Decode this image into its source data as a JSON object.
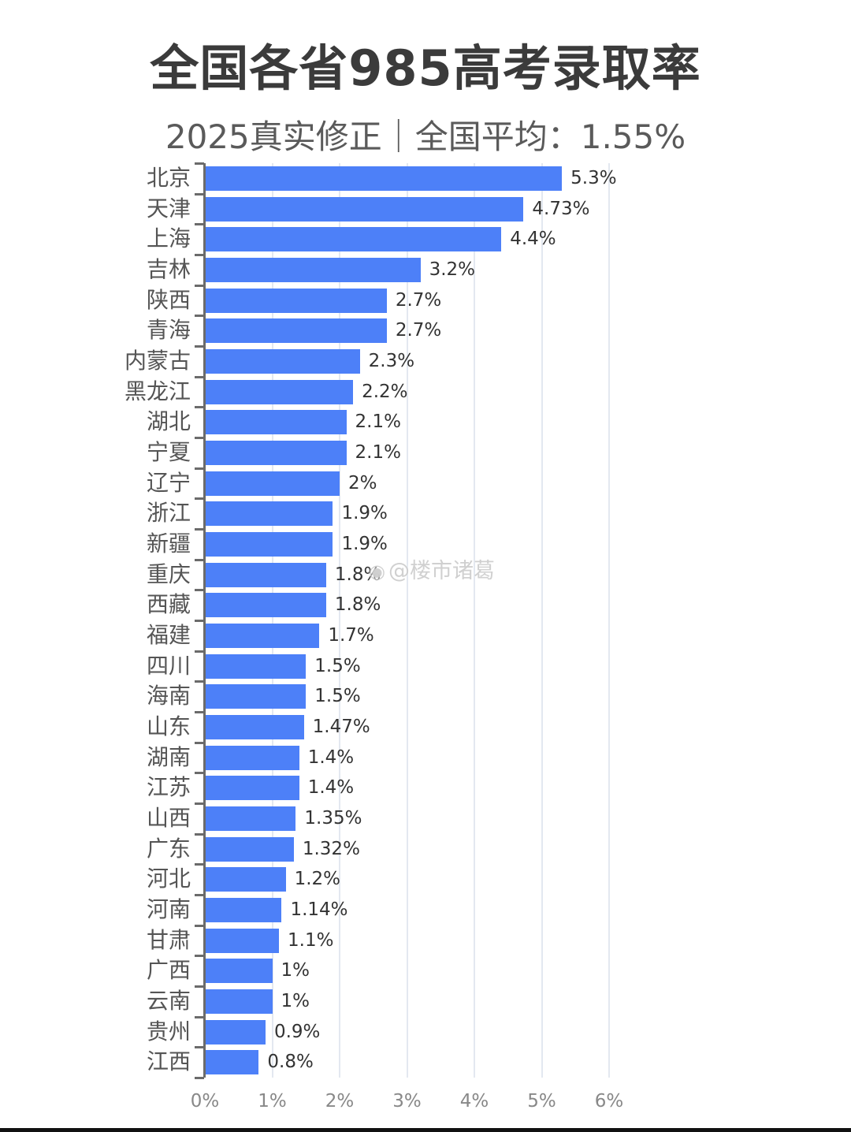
{
  "title": "全国各省985高考录取率",
  "subtitle": "2025真实修正｜全国平均：1.55%",
  "watermark": {
    "icon": "weibo-icon",
    "text": "@楼市诸葛"
  },
  "colors": {
    "bar": "#4d80f8",
    "grid": "#e3e8f0",
    "axis": "#6b6b6b"
  },
  "chart_data": {
    "type": "bar",
    "orientation": "horizontal",
    "title": "全国各省985高考录取率",
    "subtitle": "2025真实修正｜全国平均：1.55%",
    "xlabel": "",
    "ylabel": "",
    "xlim": [
      0,
      6
    ],
    "x_ticks": [
      "0%",
      "1%",
      "2%",
      "3%",
      "4%",
      "5%",
      "6%"
    ],
    "grid": true,
    "unit": "%",
    "categories": [
      "北京",
      "天津",
      "上海",
      "吉林",
      "陕西",
      "青海",
      "内蒙古",
      "黑龙江",
      "湖北",
      "宁夏",
      "辽宁",
      "浙江",
      "新疆",
      "重庆",
      "西藏",
      "福建",
      "四川",
      "海南",
      "山东",
      "湖南",
      "江苏",
      "山西",
      "广东",
      "河北",
      "河南",
      "甘肃",
      "广西",
      "云南",
      "贵州",
      "江西"
    ],
    "values": [
      5.3,
      4.73,
      4.4,
      3.2,
      2.7,
      2.7,
      2.3,
      2.2,
      2.1,
      2.1,
      2.0,
      1.9,
      1.9,
      1.8,
      1.8,
      1.7,
      1.5,
      1.5,
      1.47,
      1.4,
      1.4,
      1.35,
      1.32,
      1.2,
      1.14,
      1.1,
      1.0,
      1.0,
      0.9,
      0.8
    ],
    "value_labels": [
      "5.3%",
      "4.73%",
      "4.4%",
      "3.2%",
      "2.7%",
      "2.7%",
      "2.3%",
      "2.2%",
      "2.1%",
      "2.1%",
      "2%",
      "1.9%",
      "1.9%",
      "1.8%",
      "1.8%",
      "1.7%",
      "1.5%",
      "1.5%",
      "1.47%",
      "1.4%",
      "1.4%",
      "1.35%",
      "1.32%",
      "1.2%",
      "1.14%",
      "1.1%",
      "1%",
      "1%",
      "0.9%",
      "0.8%"
    ],
    "national_average": 1.55
  }
}
